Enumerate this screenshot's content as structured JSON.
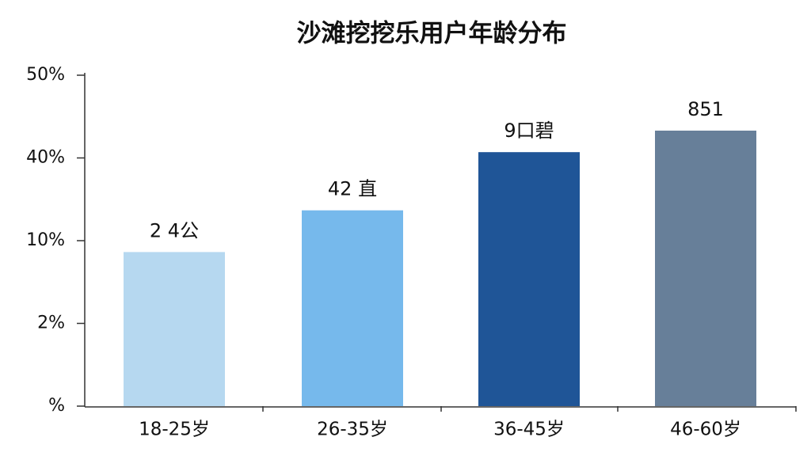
{
  "chart_data": {
    "type": "bar",
    "title": "沙滩挖挖乐用户年龄分布",
    "categories": [
      "18-25岁",
      "26-35岁",
      "36-45岁",
      "46-60岁"
    ],
    "values": [
      8.9,
      21,
      40.7,
      43.3
    ],
    "annotations": [
      "2 4公",
      "42 直",
      "9口碧",
      "851"
    ],
    "colors": [
      "#b6d8f0",
      "#76b9ec",
      "#1f5597",
      "#677f99"
    ],
    "ylim": [
      0,
      50
    ],
    "yscale": "piecewise",
    "yticks": [
      {
        "value": 0,
        "label": "%"
      },
      {
        "value": 2,
        "label": "2%"
      },
      {
        "value": 10,
        "label": "10%"
      },
      {
        "value": 40,
        "label": "40%"
      },
      {
        "value": 50,
        "label": "50%"
      }
    ]
  }
}
